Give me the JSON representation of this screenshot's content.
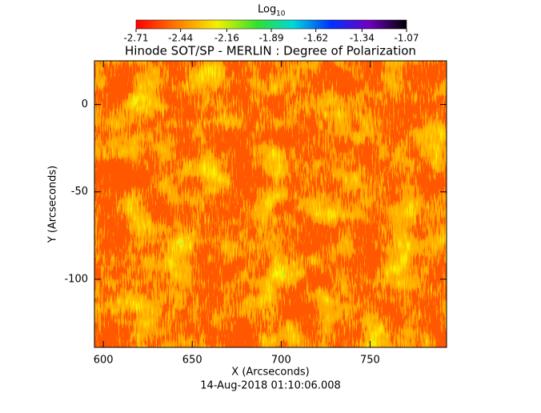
{
  "chart_data": {
    "type": "heatmap",
    "title": "Hinode SOT/SP - MERLIN : Degree of Polarization",
    "colorbar_label": "Log",
    "colorbar_label_sub": "10",
    "clim": [
      -2.71,
      -1.07
    ],
    "colorbar_ticks": [
      -2.71,
      -2.44,
      -2.16,
      -1.89,
      -1.62,
      -1.34,
      -1.07
    ],
    "x_label": "X (Arcseconds)",
    "y_label": "Y (Arcseconds)",
    "xlim": [
      595,
      793
    ],
    "ylim": [
      -139,
      25
    ],
    "xticks": [
      600,
      650,
      700,
      750
    ],
    "yticks": [
      -100,
      -50,
      0
    ],
    "footer": "14-Aug-2018 01:10:06.008"
  }
}
